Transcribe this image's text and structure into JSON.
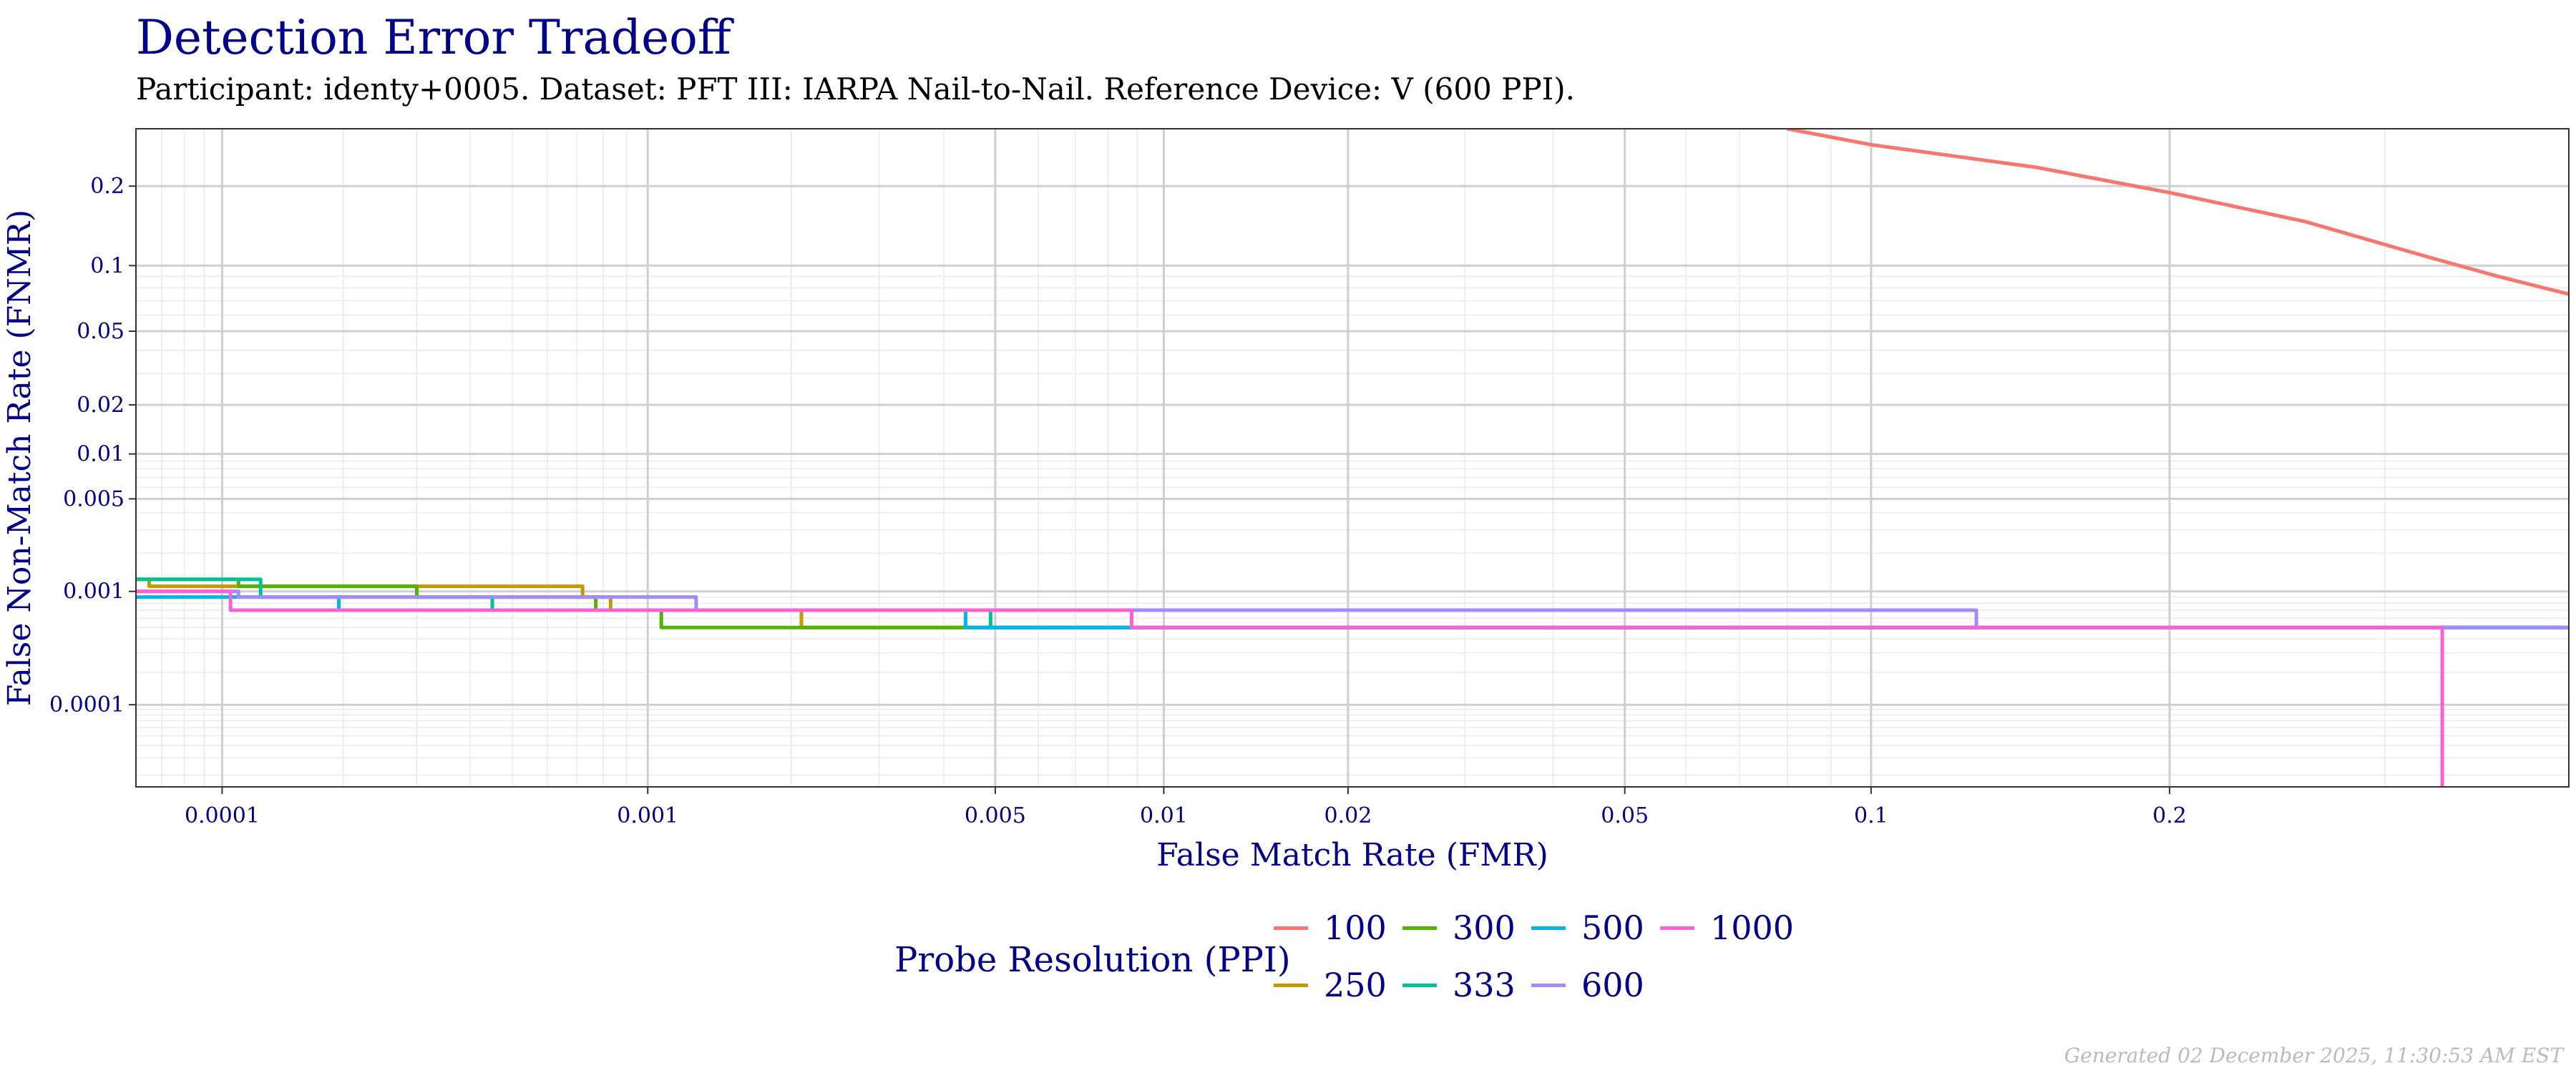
{
  "header": {
    "title": "Detection Error Tradeoff",
    "subtitle": "Participant: identy+0005. Dataset: PFT III: IARPA Nail-to-Nail. Reference Device: V (600 PPI)."
  },
  "footer": {
    "generated": "Generated 02 December 2025, 11:30:53 AM EST"
  },
  "legend": {
    "title": "Probe Resolution (PPI)",
    "items": [
      {
        "label": "100",
        "color": "#F8766D"
      },
      {
        "label": "250",
        "color": "#C49A00"
      },
      {
        "label": "300",
        "color": "#53B400"
      },
      {
        "label": "333",
        "color": "#00C094"
      },
      {
        "label": "500",
        "color": "#00B6EB"
      },
      {
        "label": "600",
        "color": "#A58AFF"
      },
      {
        "label": "1000",
        "color": "#FB61D7"
      }
    ]
  },
  "chart_data": {
    "type": "line",
    "title": "Detection Error Tradeoff",
    "subtitle": "Participant: identy+0005. Dataset: PFT III: IARPA Nail-to-Nail. Reference Device: V (600 PPI).",
    "xlabel": "False Match Rate (FMR)",
    "ylabel": "False Non-Match Rate (FNMR)",
    "x_scale": "probit",
    "y_scale": "probit",
    "xlim": [
      6e-05,
      0.4
    ],
    "ylim": [
      1.5e-05,
      0.3
    ],
    "x_ticks": [
      0.0001,
      0.001,
      0.005,
      0.01,
      0.02,
      0.05,
      0.1,
      0.2
    ],
    "x_tick_labels": [
      "0.0001",
      "0.001",
      "0.005",
      "0.01",
      "0.02",
      "0.05",
      "0.1",
      "0.2"
    ],
    "y_ticks": [
      0.0001,
      0.001,
      0.005,
      0.01,
      0.02,
      0.05,
      0.1,
      0.2
    ],
    "y_tick_labels": [
      "0.0001",
      "0.001",
      "0.005",
      "0.01",
      "0.02",
      "0.05",
      "0.1",
      "0.2"
    ],
    "grid": true,
    "legend_position": "bottom",
    "series": [
      {
        "name": "100",
        "color": "#F8766D",
        "step": false,
        "points": [
          [
            0.08,
            0.3
          ],
          [
            0.1,
            0.27
          ],
          [
            0.15,
            0.23
          ],
          [
            0.2,
            0.19
          ],
          [
            0.26,
            0.15
          ],
          [
            0.32,
            0.11
          ],
          [
            0.36,
            0.09
          ],
          [
            0.4,
            0.075
          ]
        ]
      },
      {
        "name": "250",
        "color": "#C49A00",
        "step": true,
        "points": [
          [
            6e-05,
            0.00125
          ],
          [
            6.5e-05,
            0.00125
          ],
          [
            6.5e-05,
            0.0011
          ],
          [
            0.00072,
            0.0011
          ],
          [
            0.00072,
            0.0009
          ],
          [
            0.00083,
            0.0009
          ],
          [
            0.00083,
            0.0007
          ],
          [
            0.0021,
            0.0007
          ],
          [
            0.0021,
            0.0005
          ],
          [
            0.0046,
            0.0005
          ],
          [
            0.0046,
            0.0005
          ],
          [
            0.4,
            0.0005
          ]
        ]
      },
      {
        "name": "300",
        "color": "#53B400",
        "step": true,
        "points": [
          [
            6e-05,
            0.00125
          ],
          [
            0.00011,
            0.00125
          ],
          [
            0.00011,
            0.0011
          ],
          [
            0.0003,
            0.0011
          ],
          [
            0.0003,
            0.0009
          ],
          [
            0.00077,
            0.0009
          ],
          [
            0.00077,
            0.0007
          ],
          [
            0.00107,
            0.0007
          ],
          [
            0.00107,
            0.0005
          ],
          [
            0.4,
            0.0005
          ]
        ]
      },
      {
        "name": "333",
        "color": "#00C094",
        "step": true,
        "points": [
          [
            6e-05,
            0.00125
          ],
          [
            0.000125,
            0.00125
          ],
          [
            0.000125,
            0.0009
          ],
          [
            0.00045,
            0.0009
          ],
          [
            0.00045,
            0.0007
          ],
          [
            0.0049,
            0.0007
          ],
          [
            0.0049,
            0.0005
          ],
          [
            0.4,
            0.0005
          ]
        ]
      },
      {
        "name": "500",
        "color": "#00B6EB",
        "step": true,
        "points": [
          [
            6e-05,
            0.0009
          ],
          [
            0.000195,
            0.0009
          ],
          [
            0.000195,
            0.0007
          ],
          [
            0.0044,
            0.0007
          ],
          [
            0.0044,
            0.0005
          ],
          [
            0.4,
            0.0005
          ]
        ]
      },
      {
        "name": "600",
        "color": "#A58AFF",
        "step": true,
        "points": [
          [
            6e-05,
            0.001
          ],
          [
            0.00011,
            0.001
          ],
          [
            0.00011,
            0.0009
          ],
          [
            0.00127,
            0.0009
          ],
          [
            0.00127,
            0.0007
          ],
          [
            0.13,
            0.0007
          ],
          [
            0.13,
            0.0005
          ],
          [
            0.4,
            0.0005
          ]
        ]
      },
      {
        "name": "1000",
        "color": "#FB61D7",
        "step": true,
        "points": [
          [
            6e-05,
            0.001
          ],
          [
            0.000105,
            0.001
          ],
          [
            0.000105,
            0.0007
          ],
          [
            0.0088,
            0.0007
          ],
          [
            0.0088,
            0.0005
          ],
          [
            0.33,
            0.0005
          ],
          [
            0.33,
            1.5e-05
          ]
        ]
      }
    ]
  }
}
